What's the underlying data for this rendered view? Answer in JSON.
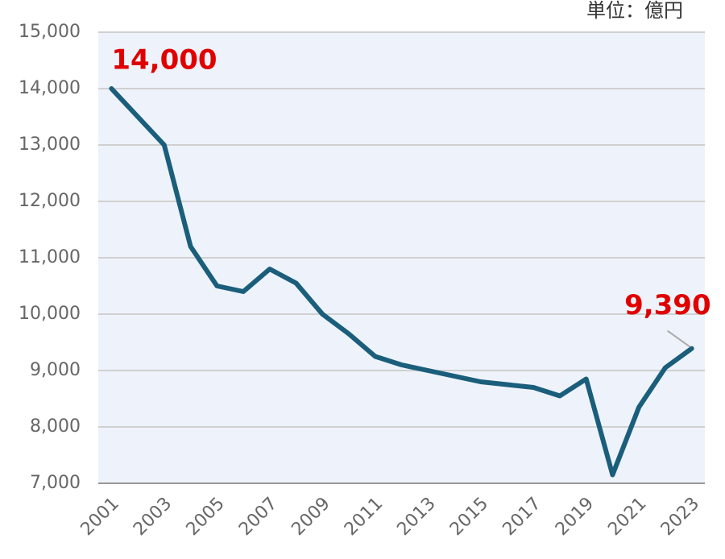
{
  "chart_data": {
    "type": "line",
    "unit_label": "単位：億円",
    "categories": [
      "2001",
      null,
      "2003",
      null,
      "2005",
      null,
      "2007",
      null,
      "2009",
      null,
      "2011",
      null,
      "2013",
      null,
      "2015",
      null,
      "2017",
      null,
      "2019",
      null,
      "2021",
      null,
      "2023"
    ],
    "series": [
      {
        "name": null,
        "color": "#1b5e7b",
        "values": [
          14000,
          13500,
          13000,
          11200,
          10500,
          10400,
          10800,
          10550,
          10000,
          9650,
          9250,
          9100,
          9000,
          8900,
          8800,
          8750,
          8700,
          8550,
          8850,
          7150,
          8350,
          9050,
          9390
        ],
        "value_labels": [
          "14,000",
          null,
          null,
          null,
          null,
          null,
          null,
          null,
          null,
          null,
          null,
          null,
          null,
          null,
          null,
          null,
          null,
          null,
          null,
          null,
          null,
          null,
          "9,390"
        ]
      }
    ],
    "ylim": [
      7000,
      15000
    ],
    "yticks": [
      {
        "value": 7000,
        "label": "7,000"
      },
      {
        "value": 8000,
        "label": "8,000"
      },
      {
        "value": 9000,
        "label": "9,000"
      },
      {
        "value": 10000,
        "label": "10,000"
      },
      {
        "value": 11000,
        "label": "11,000"
      },
      {
        "value": 12000,
        "label": "12,000"
      },
      {
        "value": 13000,
        "label": "13,000"
      },
      {
        "value": 14000,
        "label": "14,000"
      },
      {
        "value": 15000,
        "label": "15,000"
      }
    ],
    "grid": true
  }
}
